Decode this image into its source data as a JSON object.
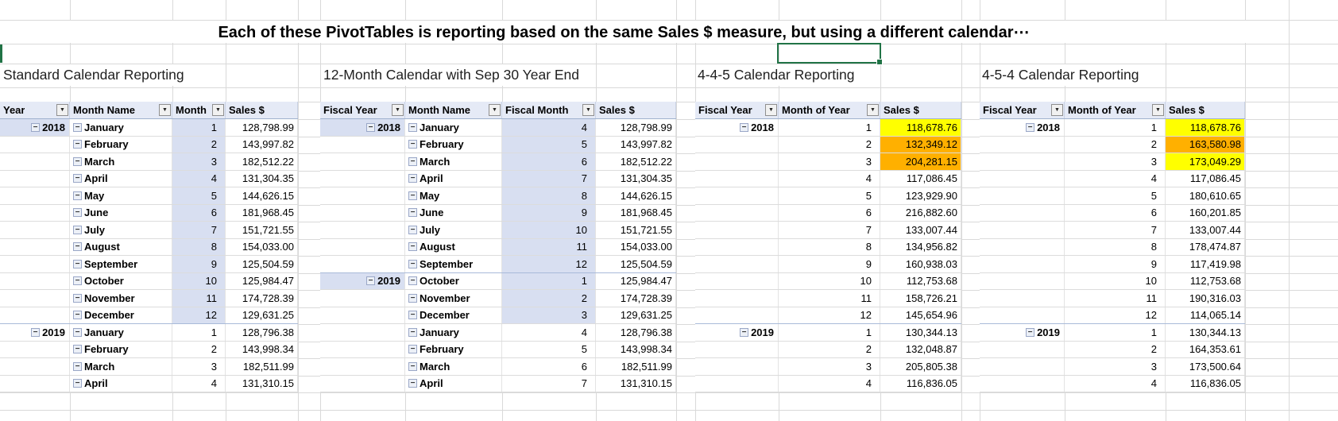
{
  "title": "Each of these PivotTables is reporting based on the same Sales $ measure, but using a different calendar⋯",
  "colors": {
    "selection_green": "#217346",
    "highlight_yellow": "#FFFF00",
    "highlight_orange": "#FFB000",
    "shade_blue": "#D8DFF1",
    "header_fill": "#E5EAF6"
  },
  "tables": [
    {
      "id": "standard-calendar",
      "section_title": "Standard Calendar Reporting",
      "headers": [
        {
          "label": "Year",
          "filter": true
        },
        {
          "label": "Month Name",
          "filter": true
        },
        {
          "label": "Month",
          "filter": true
        },
        {
          "label": "Sales $",
          "filter": false
        }
      ],
      "rows": [
        {
          "year": "2018",
          "name": "January",
          "num": "1",
          "sales": "128,798.99",
          "year_shaded": true,
          "num_shaded": true
        },
        {
          "year": "",
          "name": "February",
          "num": "2",
          "sales": "143,997.82",
          "num_shaded": true
        },
        {
          "year": "",
          "name": "March",
          "num": "3",
          "sales": "182,512.22",
          "num_shaded": true
        },
        {
          "year": "",
          "name": "April",
          "num": "4",
          "sales": "131,304.35",
          "num_shaded": true
        },
        {
          "year": "",
          "name": "May",
          "num": "5",
          "sales": "144,626.15",
          "num_shaded": true
        },
        {
          "year": "",
          "name": "June",
          "num": "6",
          "sales": "181,968.45",
          "num_shaded": true
        },
        {
          "year": "",
          "name": "July",
          "num": "7",
          "sales": "151,721.55",
          "num_shaded": true
        },
        {
          "year": "",
          "name": "August",
          "num": "8",
          "sales": "154,033.00",
          "num_shaded": true
        },
        {
          "year": "",
          "name": "September",
          "num": "9",
          "sales": "125,504.59",
          "num_shaded": true
        },
        {
          "year": "",
          "name": "October",
          "num": "10",
          "sales": "125,984.47",
          "num_shaded": true
        },
        {
          "year": "",
          "name": "November",
          "num": "11",
          "sales": "174,728.39",
          "num_shaded": true
        },
        {
          "year": "",
          "name": "December",
          "num": "12",
          "sales": "129,631.25",
          "num_shaded": true
        },
        {
          "year": "2019",
          "name": "January",
          "num": "1",
          "sales": "128,796.38",
          "group_start": true
        },
        {
          "year": "",
          "name": "February",
          "num": "2",
          "sales": "143,998.34"
        },
        {
          "year": "",
          "name": "March",
          "num": "3",
          "sales": "182,511.99"
        },
        {
          "year": "",
          "name": "April",
          "num": "4",
          "sales": "131,310.15"
        }
      ]
    },
    {
      "id": "fiscal-sep30",
      "section_title": "12-Month Calendar with Sep 30 Year End",
      "headers": [
        {
          "label": "Fiscal Year",
          "filter": true
        },
        {
          "label": "Month Name",
          "filter": true
        },
        {
          "label": "Fiscal Month",
          "filter": true
        },
        {
          "label": "Sales $",
          "filter": false
        }
      ],
      "rows": [
        {
          "year": "2018",
          "name": "January",
          "num": "4",
          "sales": "128,798.99",
          "year_shaded": true,
          "num_shaded": true
        },
        {
          "year": "",
          "name": "February",
          "num": "5",
          "sales": "143,997.82",
          "num_shaded": true
        },
        {
          "year": "",
          "name": "March",
          "num": "6",
          "sales": "182,512.22",
          "num_shaded": true
        },
        {
          "year": "",
          "name": "April",
          "num": "7",
          "sales": "131,304.35",
          "num_shaded": true
        },
        {
          "year": "",
          "name": "May",
          "num": "8",
          "sales": "144,626.15",
          "num_shaded": true
        },
        {
          "year": "",
          "name": "June",
          "num": "9",
          "sales": "181,968.45",
          "num_shaded": true
        },
        {
          "year": "",
          "name": "July",
          "num": "10",
          "sales": "151,721.55",
          "num_shaded": true
        },
        {
          "year": "",
          "name": "August",
          "num": "11",
          "sales": "154,033.00",
          "num_shaded": true
        },
        {
          "year": "",
          "name": "September",
          "num": "12",
          "sales": "125,504.59",
          "num_shaded": true
        },
        {
          "year": "2019",
          "name": "October",
          "num": "1",
          "sales": "125,984.47",
          "year_shaded": true,
          "num_shaded": true,
          "group_start": true
        },
        {
          "year": "",
          "name": "November",
          "num": "2",
          "sales": "174,728.39",
          "num_shaded": true
        },
        {
          "year": "",
          "name": "December",
          "num": "3",
          "sales": "129,631.25",
          "num_shaded": true
        },
        {
          "year": "",
          "name": "January",
          "num": "4",
          "sales": "128,796.38"
        },
        {
          "year": "",
          "name": "February",
          "num": "5",
          "sales": "143,998.34"
        },
        {
          "year": "",
          "name": "March",
          "num": "6",
          "sales": "182,511.99"
        },
        {
          "year": "",
          "name": "April",
          "num": "7",
          "sales": "131,310.15"
        }
      ]
    },
    {
      "id": "calendar-445",
      "section_title": "4-4-5 Calendar Reporting",
      "headers": [
        {
          "label": "Fiscal Year",
          "filter": true
        },
        {
          "label": "Month of Year",
          "filter": true
        },
        {
          "label": "Sales $",
          "filter": false
        }
      ],
      "rows": [
        {
          "year": "2018",
          "num": "1",
          "sales": "118,678.76",
          "sales_highlight": "yellow"
        },
        {
          "year": "",
          "num": "2",
          "sales": "132,349.12",
          "sales_highlight": "orange"
        },
        {
          "year": "",
          "num": "3",
          "sales": "204,281.15",
          "sales_highlight": "orange"
        },
        {
          "year": "",
          "num": "4",
          "sales": "117,086.45"
        },
        {
          "year": "",
          "num": "5",
          "sales": "123,929.90"
        },
        {
          "year": "",
          "num": "6",
          "sales": "216,882.60"
        },
        {
          "year": "",
          "num": "7",
          "sales": "133,007.44"
        },
        {
          "year": "",
          "num": "8",
          "sales": "134,956.82"
        },
        {
          "year": "",
          "num": "9",
          "sales": "160,938.03"
        },
        {
          "year": "",
          "num": "10",
          "sales": "112,753.68"
        },
        {
          "year": "",
          "num": "11",
          "sales": "158,726.21"
        },
        {
          "year": "",
          "num": "12",
          "sales": "145,654.96"
        },
        {
          "year": "2019",
          "num": "1",
          "sales": "130,344.13",
          "group_start": true
        },
        {
          "year": "",
          "num": "2",
          "sales": "132,048.87"
        },
        {
          "year": "",
          "num": "3",
          "sales": "205,805.38"
        },
        {
          "year": "",
          "num": "4",
          "sales": "116,836.05"
        }
      ]
    },
    {
      "id": "calendar-454",
      "section_title": "4-5-4 Calendar Reporting",
      "headers": [
        {
          "label": "Fiscal Year",
          "filter": true
        },
        {
          "label": "Month of Year",
          "filter": true
        },
        {
          "label": "Sales $",
          "filter": false
        }
      ],
      "rows": [
        {
          "year": "2018",
          "num": "1",
          "sales": "118,678.76",
          "sales_highlight": "yellow"
        },
        {
          "year": "",
          "num": "2",
          "sales": "163,580.98",
          "sales_highlight": "orange"
        },
        {
          "year": "",
          "num": "3",
          "sales": "173,049.29",
          "sales_highlight": "yellow"
        },
        {
          "year": "",
          "num": "4",
          "sales": "117,086.45"
        },
        {
          "year": "",
          "num": "5",
          "sales": "180,610.65"
        },
        {
          "year": "",
          "num": "6",
          "sales": "160,201.85"
        },
        {
          "year": "",
          "num": "7",
          "sales": "133,007.44"
        },
        {
          "year": "",
          "num": "8",
          "sales": "178,474.87"
        },
        {
          "year": "",
          "num": "9",
          "sales": "117,419.98"
        },
        {
          "year": "",
          "num": "10",
          "sales": "112,753.68"
        },
        {
          "year": "",
          "num": "11",
          "sales": "190,316.03"
        },
        {
          "year": "",
          "num": "12",
          "sales": "114,065.14"
        },
        {
          "year": "2019",
          "num": "1",
          "sales": "130,344.13",
          "group_start": true
        },
        {
          "year": "",
          "num": "2",
          "sales": "164,353.61"
        },
        {
          "year": "",
          "num": "3",
          "sales": "173,500.64"
        },
        {
          "year": "",
          "num": "4",
          "sales": "116,836.05"
        }
      ]
    }
  ]
}
